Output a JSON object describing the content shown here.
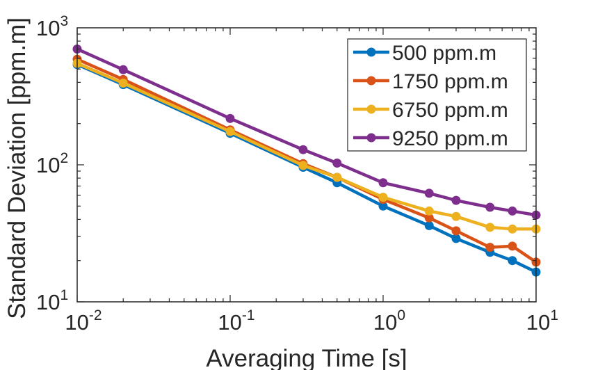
{
  "chart_data": {
    "type": "line",
    "title": "",
    "xlabel": "Averaging Time [s]",
    "ylabel": "Standard Deviation [ppm.m]",
    "xscale": "log",
    "yscale": "log",
    "xlim": [
      0.01,
      10
    ],
    "ylim": [
      10,
      1000
    ],
    "xticks": [
      {
        "value": 0.01,
        "base": "10",
        "exp": "-2"
      },
      {
        "value": 0.1,
        "base": "10",
        "exp": "-1"
      },
      {
        "value": 1,
        "base": "10",
        "exp": "0"
      },
      {
        "value": 10,
        "base": "10",
        "exp": "1"
      }
    ],
    "yticks": [
      {
        "value": 10,
        "base": "10",
        "exp": "1"
      },
      {
        "value": 100,
        "base": "10",
        "exp": "2"
      },
      {
        "value": 1000,
        "base": "10",
        "exp": "3"
      }
    ],
    "grid": false,
    "legend_position": "top-right",
    "x": [
      0.01,
      0.02,
      0.1,
      0.3,
      0.5,
      1,
      2,
      3,
      5,
      7,
      10
    ],
    "series": [
      {
        "name": "500 ppm.m",
        "color": "#0072BD",
        "values": [
          540,
          385,
          170,
          96,
          74,
          50,
          36,
          29,
          23,
          20,
          16.5
        ]
      },
      {
        "name": "1750 ppm.m",
        "color": "#D95319",
        "values": [
          590,
          420,
          180,
          102,
          81,
          56,
          41,
          33,
          25,
          25.5,
          19.5
        ]
      },
      {
        "name": "6750 ppm.m",
        "color": "#EDB120",
        "values": [
          550,
          395,
          175,
          99,
          81,
          58,
          46,
          42,
          35,
          34,
          34
        ]
      },
      {
        "name": "9250 ppm.m",
        "color": "#7E2F8E",
        "values": [
          700,
          495,
          218,
          129,
          103,
          74,
          62,
          55,
          49,
          46,
          43
        ]
      }
    ]
  }
}
